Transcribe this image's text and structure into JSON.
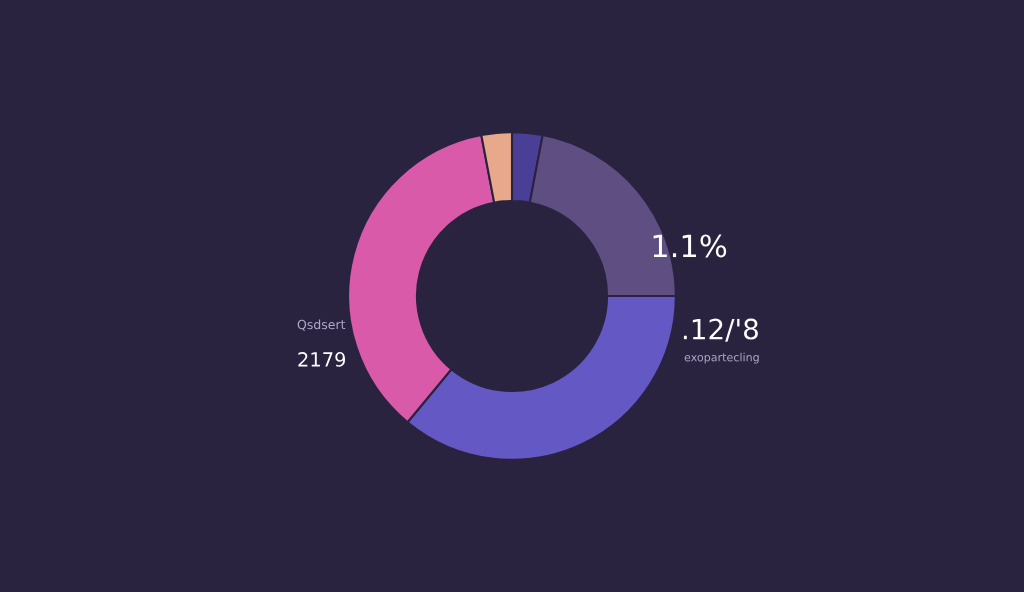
{
  "chart_data": {
    "type": "donut",
    "categories": [
      null,
      null,
      null,
      null,
      null
    ],
    "values": [
      3,
      22,
      36,
      36,
      3
    ],
    "colors": [
      "#4a3f96",
      "#5e4e82",
      "#6458c4",
      "#d85aa8",
      "#e8a88a"
    ],
    "annotations": [
      "1.1%",
      ".12/'8",
      "exopartecling",
      "Qsdsert",
      "2179"
    ],
    "legend": false
  }
}
